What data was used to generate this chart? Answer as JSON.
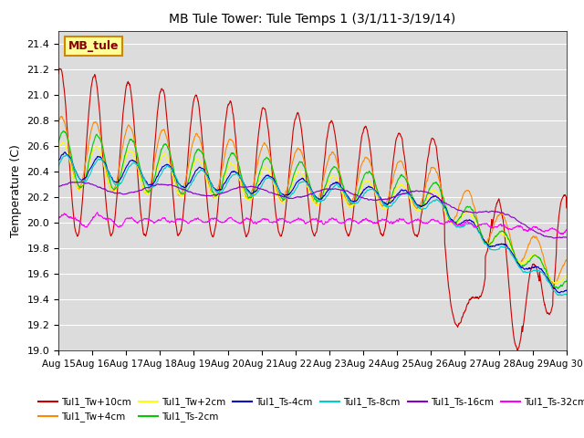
{
  "title": "MB Tule Tower: Tule Temps 1 (3/1/11-3/19/14)",
  "ylabel": "Temperature (C)",
  "xlabel": "",
  "ylim": [
    19.0,
    21.5
  ],
  "xlim": [
    0,
    15
  ],
  "plot_bg_color": "#dcdcdc",
  "x_tick_labels": [
    "Aug 15",
    "Aug 16",
    "Aug 17",
    "Aug 18",
    "Aug 19",
    "Aug 20",
    "Aug 21",
    "Aug 22",
    "Aug 23",
    "Aug 24",
    "Aug 25",
    "Aug 26",
    "Aug 27",
    "Aug 28",
    "Aug 29",
    "Aug 30"
  ],
  "series_colors": {
    "Tul1_Tw+10cm": "#cc0000",
    "Tul1_Tw+4cm": "#ff8800",
    "Tul1_Tw+2cm": "#ffff00",
    "Tul1_Ts-2cm": "#00cc00",
    "Tul1_Ts-4cm": "#0000cc",
    "Tul1_Ts-8cm": "#00cccc",
    "Tul1_Ts-16cm": "#8800cc",
    "Tul1_Ts-32cm": "#ff00ff"
  },
  "legend_box_color": "#ffff99",
  "legend_box_edge": "#cc8800",
  "legend_label": "MB_tule"
}
